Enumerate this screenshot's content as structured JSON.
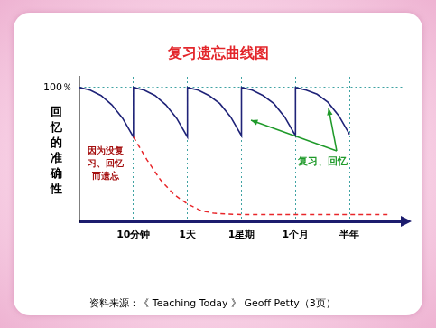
{
  "chart_data": {
    "type": "line",
    "title": "复习遗忘曲线图",
    "y_label": "回忆的准确性",
    "xlim": [
      0,
      6
    ],
    "xticks": [
      {
        "value": 1,
        "label": "10分钟"
      },
      {
        "value": 2,
        "label": "1天"
      },
      {
        "value": 3,
        "label": "1星期"
      },
      {
        "value": 4,
        "label": "1个月"
      },
      {
        "value": 5,
        "label": "半年"
      }
    ],
    "ylim": [
      0,
      108
    ],
    "yticks": [
      {
        "value": 100,
        "label": "100％"
      }
    ],
    "grid": true,
    "series": [
      {
        "color": "#e8262a",
        "line_style": "dashed",
        "x": [
          1,
          1.25,
          1.5,
          1.75,
          2,
          2.25,
          2.5,
          3,
          4,
          5,
          5.75
        ],
        "values": [
          63,
          46,
          31,
          20,
          13,
          8,
          6,
          5,
          5,
          5,
          5
        ]
      },
      {
        "color": "#1f2378",
        "line_style": "solid",
        "x": [
          0,
          0.2,
          0.4,
          0.6,
          0.8,
          1,
          1,
          1.2,
          1.4,
          1.6,
          1.8,
          2,
          2,
          2.2,
          2.4,
          2.6,
          2.8,
          3,
          3,
          3.2,
          3.4,
          3.6,
          3.8,
          4,
          4,
          4.2,
          4.4,
          4.6,
          4.8,
          5
        ],
        "values": [
          100,
          98,
          94,
          87,
          77,
          63,
          100,
          98,
          94,
          87,
          77,
          63,
          100,
          98,
          94,
          88,
          78,
          64,
          100,
          98,
          94,
          88,
          78,
          64,
          100,
          98,
          95,
          89,
          79,
          65
        ]
      }
    ],
    "annotations": [
      {
        "text": [
          "因为没复",
          "习、回忆",
          "而遗忘"
        ]
      },
      {
        "text": "复习、回忆"
      }
    ],
    "source": "资料来源：《 Teaching Today 》 Geoff Petty（3页）"
  }
}
